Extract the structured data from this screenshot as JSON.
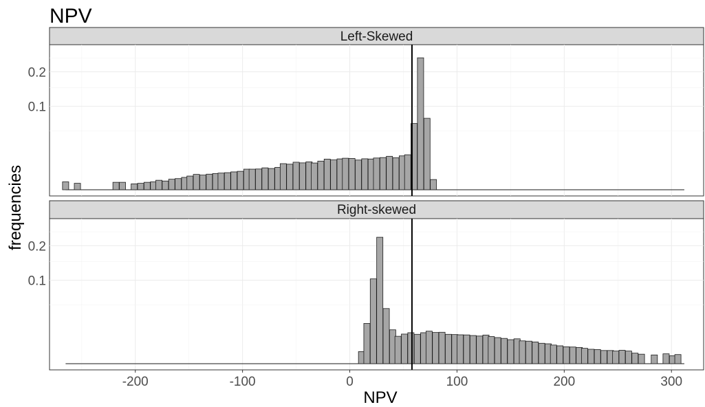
{
  "chart_data": {
    "type": "bar",
    "title": "NPV",
    "xlabel": "NPV",
    "ylabel": "frequencies",
    "x_ticks": [
      -200,
      -100,
      0,
      100,
      200,
      300
    ],
    "y_ticks": [
      0.1,
      0.2
    ],
    "xlim": [
      -280,
      330
    ],
    "y_scale": "sqrt",
    "ylim": [
      0,
      0.28
    ],
    "grid": true,
    "reference_line_x": 58,
    "bin_width": 5.8,
    "panels": [
      {
        "label": "Left-Skewed",
        "bins_x": [
          -265,
          -254,
          -218,
          -212,
          -201,
          -195,
          -189,
          -183,
          -178,
          -172,
          -166,
          -160,
          -154,
          -149,
          -143,
          -137,
          -131,
          -125,
          -120,
          -114,
          -108,
          -102,
          -96,
          -91,
          -85,
          -79,
          -73,
          -67,
          -62,
          -56,
          -50,
          -44,
          -38,
          -33,
          -27,
          -21,
          -15,
          -9,
          -4,
          2,
          8,
          14,
          20,
          25,
          31,
          37,
          43,
          49,
          54,
          60,
          66,
          72,
          78
        ],
        "values": [
          0.0009,
          0.0006,
          0.0008,
          0.0008,
          0.0005,
          0.0006,
          0.0008,
          0.0009,
          0.0013,
          0.0011,
          0.0016,
          0.0018,
          0.0022,
          0.0027,
          0.0034,
          0.0031,
          0.0035,
          0.0038,
          0.004,
          0.0042,
          0.0046,
          0.0049,
          0.0061,
          0.0061,
          0.0062,
          0.0069,
          0.0065,
          0.0072,
          0.0098,
          0.0094,
          0.0109,
          0.0104,
          0.0112,
          0.0103,
          0.0118,
          0.0135,
          0.0128,
          0.0137,
          0.0143,
          0.0141,
          0.0127,
          0.0138,
          0.0136,
          0.0145,
          0.0149,
          0.0161,
          0.0147,
          0.0165,
          0.0176,
          0.0631,
          0.2502,
          0.0734,
          0.0015
        ],
        "line_extent": [
          -265,
          312
        ]
      },
      {
        "label": "Right-skewed",
        "bins_x": [
          11,
          16,
          22,
          28,
          34,
          40,
          45,
          51,
          57,
          63,
          69,
          74,
          80,
          86,
          92,
          98,
          103,
          109,
          115,
          121,
          127,
          132,
          138,
          144,
          150,
          156,
          161,
          167,
          173,
          179,
          185,
          190,
          196,
          202,
          208,
          214,
          219,
          225,
          231,
          237,
          243,
          248,
          254,
          260,
          266,
          272,
          284,
          295,
          301,
          306
        ],
        "values": [
          0.0021,
          0.0233,
          0.1034,
          0.2298,
          0.0437,
          0.0165,
          0.0108,
          0.0126,
          0.0138,
          0.0124,
          0.0138,
          0.0152,
          0.014,
          0.0142,
          0.0124,
          0.0122,
          0.012,
          0.0119,
          0.0114,
          0.011,
          0.0118,
          0.0106,
          0.0098,
          0.0092,
          0.0083,
          0.0089,
          0.0075,
          0.0073,
          0.0068,
          0.006,
          0.0057,
          0.005,
          0.0046,
          0.0041,
          0.004,
          0.0038,
          0.0034,
          0.003,
          0.0029,
          0.0025,
          0.0025,
          0.0023,
          0.0026,
          0.0023,
          0.0016,
          0.0013,
          0.0011,
          0.0014,
          0.0009,
          0.0012
        ],
        "line_extent": [
          -265,
          312
        ]
      }
    ]
  }
}
